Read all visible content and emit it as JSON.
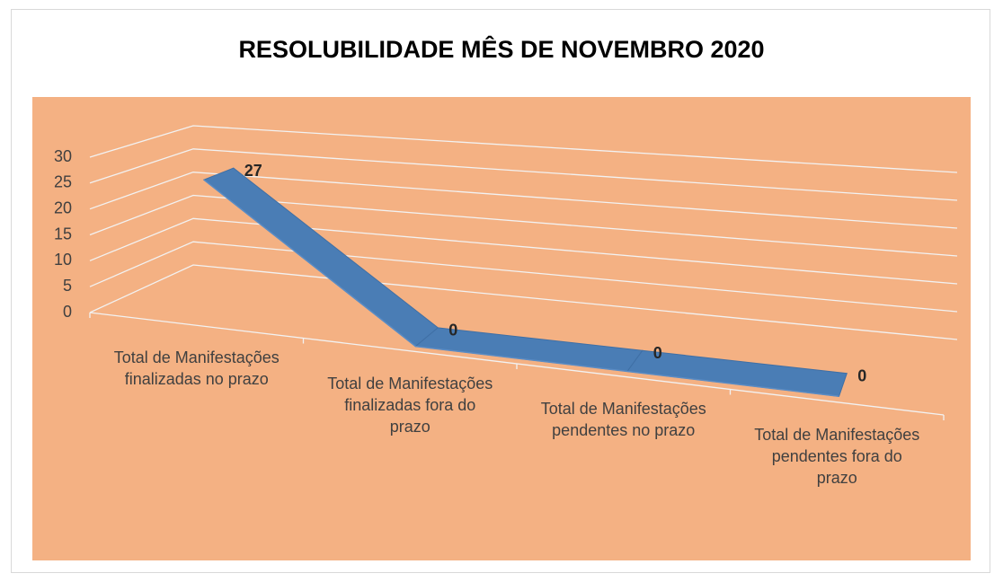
{
  "chart_data": {
    "type": "line3d",
    "title": "RESOLUBILIDADE MÊS DE NOVEMBRO 2020",
    "categories": [
      "Total de Manifestações finalizadas no prazo",
      "Total de Manifestações finalizadas fora do prazo",
      "Total de Manifestações pendentes no prazo",
      "Total de Manifestações pendentes fora do prazo"
    ],
    "values": [
      27,
      0,
      0,
      0
    ],
    "color": "#4a7db5",
    "background": "#f4b183",
    "ylim": [
      0,
      30
    ],
    "yticks": [
      0,
      5,
      10,
      15,
      20,
      25,
      30
    ],
    "grid": true
  }
}
